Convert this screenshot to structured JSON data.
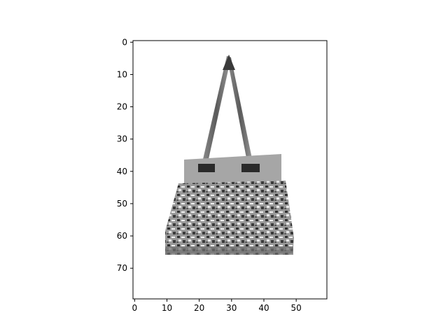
{
  "image": {
    "colormap": "grayscale",
    "subject": "handbag-icon"
  },
  "axes": {
    "x_ticks": [
      "0",
      "10",
      "20",
      "30",
      "40",
      "50"
    ],
    "y_ticks": [
      "0",
      "10",
      "20",
      "30",
      "40",
      "50",
      "60",
      "70"
    ],
    "xlim": [
      -0.5,
      59.5
    ],
    "ylim": [
      79.5,
      -0.5
    ],
    "axis_color": "#000000",
    "background": "#ffffff"
  }
}
